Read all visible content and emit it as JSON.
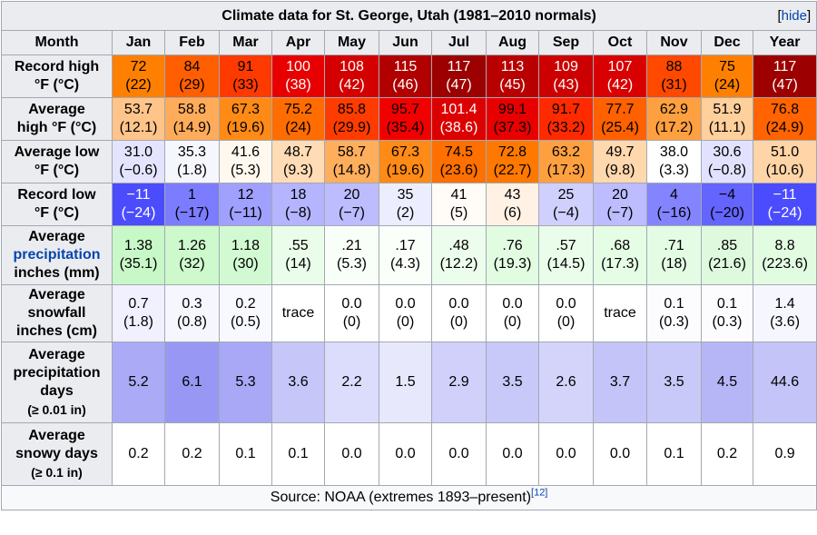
{
  "table": {
    "title": "Climate data for St. George, Utah (1981–2010 normals)",
    "hide_label": "hide",
    "header": [
      "Month",
      "Jan",
      "Feb",
      "Mar",
      "Apr",
      "May",
      "Jun",
      "Jul",
      "Aug",
      "Sep",
      "Oct",
      "Nov",
      "Dec",
      "Year"
    ],
    "rows": [
      {
        "key": "recordhigh",
        "label_lines": [
          "Record high",
          "°F (°C)"
        ],
        "cells": [
          {
            "v": "72\n(22)",
            "bg": "#ff8000",
            "fg": "#000000"
          },
          {
            "v": "84\n(29)",
            "bg": "#ff5f00",
            "fg": "#000000"
          },
          {
            "v": "91\n(33)",
            "bg": "#ff3a00",
            "fg": "#000000"
          },
          {
            "v": "100\n(38)",
            "bg": "#e80000",
            "fg": "#ffffff"
          },
          {
            "v": "108\n(42)",
            "bg": "#d40000",
            "fg": "#ffffff"
          },
          {
            "v": "115\n(46)",
            "bg": "#b00000",
            "fg": "#ffffff"
          },
          {
            "v": "117\n(47)",
            "bg": "#9c0000",
            "fg": "#ffffff"
          },
          {
            "v": "113\n(45)",
            "bg": "#b80000",
            "fg": "#ffffff"
          },
          {
            "v": "109\n(43)",
            "bg": "#cc0000",
            "fg": "#ffffff"
          },
          {
            "v": "107\n(42)",
            "bg": "#d80000",
            "fg": "#ffffff"
          },
          {
            "v": "88\n(31)",
            "bg": "#ff4800",
            "fg": "#000000"
          },
          {
            "v": "75\n(24)",
            "bg": "#ff8000",
            "fg": "#000000"
          },
          {
            "v": "117\n(47)",
            "bg": "#9c0000",
            "fg": "#ffffff"
          }
        ]
      },
      {
        "key": "avghigh",
        "label_lines": [
          "Average",
          "high °F (°C)"
        ],
        "cells": [
          {
            "v": "53.7\n(12.1)",
            "bg": "#ffc48a",
            "fg": "#000000"
          },
          {
            "v": "58.8\n(14.9)",
            "bg": "#ffac5a",
            "fg": "#000000"
          },
          {
            "v": "67.3\n(19.6)",
            "bg": "#ff8a16",
            "fg": "#000000"
          },
          {
            "v": "75.2\n(24)",
            "bg": "#ff6c00",
            "fg": "#000000"
          },
          {
            "v": "85.8\n(29.9)",
            "bg": "#ff3c00",
            "fg": "#000000"
          },
          {
            "v": "95.7\n(35.4)",
            "bg": "#f20000",
            "fg": "#000000"
          },
          {
            "v": "101.4\n(38.6)",
            "bg": "#dc0000",
            "fg": "#ffffff"
          },
          {
            "v": "99.1\n(37.3)",
            "bg": "#e80000",
            "fg": "#000000"
          },
          {
            "v": "91.7\n(33.2)",
            "bg": "#ff2a00",
            "fg": "#000000"
          },
          {
            "v": "77.7\n(25.4)",
            "bg": "#ff6000",
            "fg": "#000000"
          },
          {
            "v": "62.9\n(17.2)",
            "bg": "#ffa040",
            "fg": "#000000"
          },
          {
            "v": "51.9\n(11.1)",
            "bg": "#ffd09c",
            "fg": "#000000"
          },
          {
            "v": "76.8\n(24.9)",
            "bg": "#ff6400",
            "fg": "#000000"
          }
        ]
      },
      {
        "key": "avglow",
        "label_lines": [
          "Average low",
          "°F (°C)"
        ],
        "cells": [
          {
            "v": "31.0\n(−0.6)",
            "bg": "#e4e4ff",
            "fg": "#000000"
          },
          {
            "v": "35.3\n(1.8)",
            "bg": "#f6f6ff",
            "fg": "#000000"
          },
          {
            "v": "41.6\n(5.3)",
            "bg": "#fff8ee",
            "fg": "#000000"
          },
          {
            "v": "48.7\n(9.3)",
            "bg": "#ffdcb6",
            "fg": "#000000"
          },
          {
            "v": "58.7\n(14.8)",
            "bg": "#ffae5c",
            "fg": "#000000"
          },
          {
            "v": "67.3\n(19.6)",
            "bg": "#ff8a16",
            "fg": "#000000"
          },
          {
            "v": "74.5\n(23.6)",
            "bg": "#ff7000",
            "fg": "#000000"
          },
          {
            "v": "72.8\n(22.7)",
            "bg": "#ff7800",
            "fg": "#000000"
          },
          {
            "v": "63.2\n(17.3)",
            "bg": "#ffa040",
            "fg": "#000000"
          },
          {
            "v": "49.7\n(9.8)",
            "bg": "#ffd8ae",
            "fg": "#000000"
          },
          {
            "v": "38.0\n(3.3)",
            "bg": "#ffffff",
            "fg": "#000000"
          },
          {
            "v": "30.6\n(−0.8)",
            "bg": "#e2e2ff",
            "fg": "#000000"
          },
          {
            "v": "51.0\n(10.6)",
            "bg": "#ffd4a6",
            "fg": "#000000"
          }
        ]
      },
      {
        "key": "recordlow",
        "label_lines": [
          "Record low",
          "°F (°C)"
        ],
        "cells": [
          {
            "v": "−11\n(−24)",
            "bg": "#4c4cff",
            "fg": "#ffffff"
          },
          {
            "v": "1\n(−17)",
            "bg": "#7c7cff",
            "fg": "#000000"
          },
          {
            "v": "12\n(−11)",
            "bg": "#a0a0ff",
            "fg": "#000000"
          },
          {
            "v": "18\n(−8)",
            "bg": "#b4b4ff",
            "fg": "#000000"
          },
          {
            "v": "20\n(−7)",
            "bg": "#bcbcff",
            "fg": "#000000"
          },
          {
            "v": "35\n(2)",
            "bg": "#ecedff",
            "fg": "#000000"
          },
          {
            "v": "41\n(5)",
            "bg": "#fffbf6",
            "fg": "#000000"
          },
          {
            "v": "43\n(6)",
            "bg": "#fff2e4",
            "fg": "#000000"
          },
          {
            "v": "25\n(−4)",
            "bg": "#d0d0ff",
            "fg": "#000000"
          },
          {
            "v": "20\n(−7)",
            "bg": "#bcbcff",
            "fg": "#000000"
          },
          {
            "v": "4\n(−16)",
            "bg": "#8484ff",
            "fg": "#000000"
          },
          {
            "v": "−4\n(−20)",
            "bg": "#6464ff",
            "fg": "#000000"
          },
          {
            "v": "−11\n(−24)",
            "bg": "#4c4cff",
            "fg": "#ffffff"
          }
        ]
      },
      {
        "key": "precip",
        "label_lines": [
          "Average",
          "precipitation",
          "inches (mm)"
        ],
        "link_line": 1,
        "cells": [
          {
            "v": "1.38\n(35.1)",
            "bg": "#c8f8c8",
            "fg": "#000000"
          },
          {
            "v": "1.26\n(32)",
            "bg": "#cdf9cd",
            "fg": "#000000"
          },
          {
            "v": "1.18\n(30)",
            "bg": "#d2fad2",
            "fg": "#000000"
          },
          {
            "v": ".55\n(14)",
            "bg": "#eafdea",
            "fg": "#000000"
          },
          {
            "v": ".21\n(5.3)",
            "bg": "#f8fef8",
            "fg": "#000000"
          },
          {
            "v": ".17\n(4.3)",
            "bg": "#fafffa",
            "fg": "#000000"
          },
          {
            "v": ".48\n(12.2)",
            "bg": "#edfded",
            "fg": "#000000"
          },
          {
            "v": ".76\n(19.3)",
            "bg": "#e2fce2",
            "fg": "#000000"
          },
          {
            "v": ".57\n(14.5)",
            "bg": "#eafdea",
            "fg": "#000000"
          },
          {
            "v": ".68\n(17.3)",
            "bg": "#e5fce5",
            "fg": "#000000"
          },
          {
            "v": ".71\n(18)",
            "bg": "#e4fce4",
            "fg": "#000000"
          },
          {
            "v": ".85\n(21.6)",
            "bg": "#def9de",
            "fg": "#000000"
          },
          {
            "v": "8.8\n(223.6)",
            "bg": "#e2fce2",
            "fg": "#000000"
          }
        ]
      },
      {
        "key": "snow",
        "label_lines": [
          "Average",
          "snowfall",
          "inches (cm)"
        ],
        "cells": [
          {
            "v": "0.7\n(1.8)",
            "bg": "#f0f0ff",
            "fg": "#000000"
          },
          {
            "v": "0.3\n(0.8)",
            "bg": "#f6f6ff",
            "fg": "#000000"
          },
          {
            "v": "0.2\n(0.5)",
            "bg": "#f8f8ff",
            "fg": "#000000"
          },
          {
            "v": "trace",
            "bg": "#ffffff",
            "fg": "#000000"
          },
          {
            "v": "0.0\n(0)",
            "bg": "#ffffff",
            "fg": "#000000"
          },
          {
            "v": "0.0\n(0)",
            "bg": "#ffffff",
            "fg": "#000000"
          },
          {
            "v": "0.0\n(0)",
            "bg": "#ffffff",
            "fg": "#000000"
          },
          {
            "v": "0.0\n(0)",
            "bg": "#ffffff",
            "fg": "#000000"
          },
          {
            "v": "0.0\n(0)",
            "bg": "#ffffff",
            "fg": "#000000"
          },
          {
            "v": "trace",
            "bg": "#ffffff",
            "fg": "#000000"
          },
          {
            "v": "0.1\n(0.3)",
            "bg": "#fcfcff",
            "fg": "#000000"
          },
          {
            "v": "0.1\n(0.3)",
            "bg": "#fcfcff",
            "fg": "#000000"
          },
          {
            "v": "1.4\n(3.6)",
            "bg": "#f6f6ff",
            "fg": "#000000"
          }
        ]
      },
      {
        "key": "pdays",
        "label_lines": [
          "Average",
          "precipitation",
          "days",
          "(≥ 0.01 in)"
        ],
        "small_last": true,
        "cells": [
          {
            "v": "5.2",
            "bg": "#aaaaf6",
            "fg": "#000000"
          },
          {
            "v": "6.1",
            "bg": "#9898f4",
            "fg": "#000000"
          },
          {
            "v": "5.3",
            "bg": "#a8a8f6",
            "fg": "#000000"
          },
          {
            "v": "3.6",
            "bg": "#c6c6f9",
            "fg": "#000000"
          },
          {
            "v": "2.2",
            "bg": "#dcdcfc",
            "fg": "#000000"
          },
          {
            "v": "1.5",
            "bg": "#e8e8fd",
            "fg": "#000000"
          },
          {
            "v": "2.9",
            "bg": "#d0d0fa",
            "fg": "#000000"
          },
          {
            "v": "3.5",
            "bg": "#c8c8f9",
            "fg": "#000000"
          },
          {
            "v": "2.6",
            "bg": "#d4d4fb",
            "fg": "#000000"
          },
          {
            "v": "3.7",
            "bg": "#c4c4f8",
            "fg": "#000000"
          },
          {
            "v": "3.5",
            "bg": "#c8c8f9",
            "fg": "#000000"
          },
          {
            "v": "4.5",
            "bg": "#b6b6f7",
            "fg": "#000000"
          },
          {
            "v": "44.6",
            "bg": "#c4c4f8",
            "fg": "#000000"
          }
        ]
      },
      {
        "key": "sdays",
        "label_lines": [
          "Average",
          "snowy days",
          "(≥ 0.1 in)"
        ],
        "small_last": true,
        "cells": [
          {
            "v": "0.2",
            "bg": "#ffffff",
            "fg": "#000000"
          },
          {
            "v": "0.2",
            "bg": "#ffffff",
            "fg": "#000000"
          },
          {
            "v": "0.1",
            "bg": "#ffffff",
            "fg": "#000000"
          },
          {
            "v": "0.1",
            "bg": "#ffffff",
            "fg": "#000000"
          },
          {
            "v": "0.0",
            "bg": "#ffffff",
            "fg": "#000000"
          },
          {
            "v": "0.0",
            "bg": "#ffffff",
            "fg": "#000000"
          },
          {
            "v": "0.0",
            "bg": "#ffffff",
            "fg": "#000000"
          },
          {
            "v": "0.0",
            "bg": "#ffffff",
            "fg": "#000000"
          },
          {
            "v": "0.0",
            "bg": "#ffffff",
            "fg": "#000000"
          },
          {
            "v": "0.0",
            "bg": "#ffffff",
            "fg": "#000000"
          },
          {
            "v": "0.1",
            "bg": "#ffffff",
            "fg": "#000000"
          },
          {
            "v": "0.2",
            "bg": "#ffffff",
            "fg": "#000000"
          },
          {
            "v": "0.9",
            "bg": "#ffffff",
            "fg": "#000000"
          }
        ]
      }
    ],
    "source_text": "Source: NOAA (extremes 1893–present)",
    "source_ref": "[12]"
  }
}
